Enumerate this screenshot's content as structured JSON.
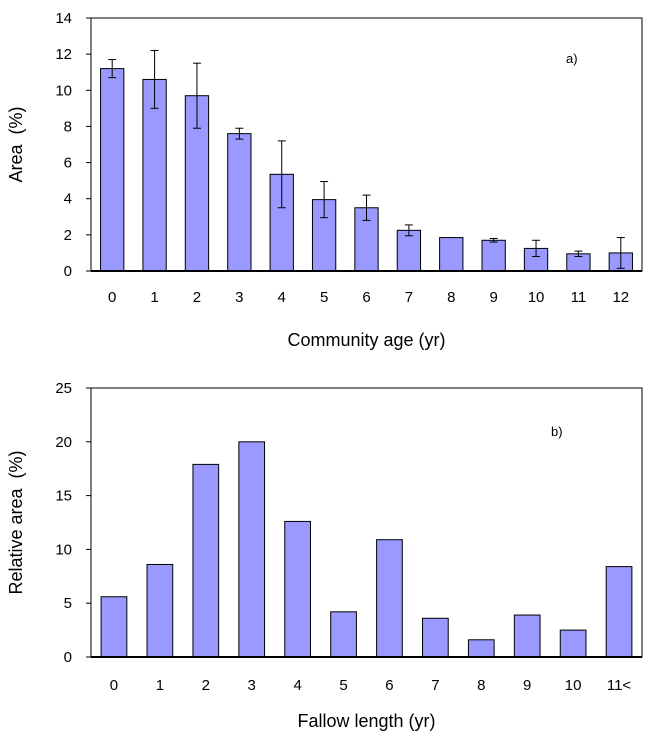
{
  "chart_data": [
    {
      "type": "bar",
      "panel_label": "a)",
      "title": "",
      "xlabel": "Community age (yr)",
      "ylabel": "Area  (%)",
      "categories": [
        "0",
        "1",
        "2",
        "3",
        "4",
        "5",
        "6",
        "7",
        "8",
        "9",
        "10",
        "11",
        "12"
      ],
      "series": [
        {
          "values": [
            11.2,
            10.6,
            9.7,
            7.6,
            5.35,
            3.95,
            3.5,
            2.25,
            1.85,
            1.7,
            1.25,
            0.95,
            1.0
          ],
          "error": [
            0.5,
            1.6,
            1.8,
            0.3,
            1.85,
            1.0,
            0.7,
            0.3,
            0.0,
            0.1,
            0.45,
            0.15,
            0.85
          ]
        }
      ],
      "ylim": [
        0,
        14
      ],
      "yticks": [
        "0",
        "2",
        "4",
        "6",
        "8",
        "10",
        "12",
        "14"
      ],
      "grid": false,
      "bar_color": "#9999ff"
    },
    {
      "type": "bar",
      "panel_label": "b)",
      "title": "",
      "xlabel": "Fallow length (yr)",
      "ylabel": "Relative area  (%)",
      "categories": [
        "0",
        "1",
        "2",
        "3",
        "4",
        "5",
        "6",
        "7",
        "8",
        "9",
        "10",
        "11<"
      ],
      "series": [
        {
          "values": [
            5.6,
            8.6,
            17.9,
            20.0,
            12.6,
            4.2,
            10.9,
            3.6,
            1.6,
            3.9,
            2.5,
            8.4
          ]
        }
      ],
      "ylim": [
        0,
        25
      ],
      "yticks": [
        "0",
        "5",
        "10",
        "15",
        "20",
        "25"
      ],
      "grid": false,
      "bar_color": "#9999ff"
    }
  ]
}
